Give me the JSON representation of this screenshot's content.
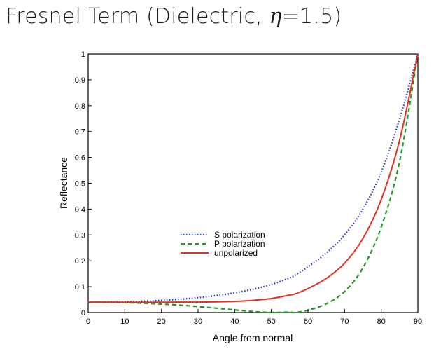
{
  "title": {
    "prefix": "Fresnel Term (Dielectric, ",
    "symbol": "η",
    "suffix": "=1.5)"
  },
  "chart_data": {
    "type": "line",
    "xlabel": "Angle from normal",
    "ylabel": "Reflectance",
    "xlim": [
      0,
      90
    ],
    "ylim": [
      0,
      1
    ],
    "xticks": [
      0,
      10,
      20,
      30,
      40,
      50,
      60,
      70,
      80,
      90
    ],
    "yticks": [
      0,
      0.1,
      0.2,
      0.3,
      0.4,
      0.5,
      0.6,
      0.7,
      0.8,
      0.9,
      1
    ],
    "x": [
      0,
      5,
      10,
      15,
      20,
      25,
      30,
      35,
      40,
      45,
      50,
      55,
      56.3,
      60,
      65,
      70,
      75,
      80,
      85,
      90
    ],
    "series": [
      {
        "name": "S polarization",
        "color": "#2233cc",
        "style": "dotted",
        "values": [
          0.04,
          0.0404,
          0.0417,
          0.0438,
          0.0472,
          0.0518,
          0.0577,
          0.0659,
          0.0762,
          0.0905,
          0.1084,
          0.1338,
          0.1428,
          0.177,
          0.23,
          0.3004,
          0.3997,
          0.5431,
          0.7479,
          1.0
        ]
      },
      {
        "name": "P polarization",
        "color": "#229922",
        "style": "dashed",
        "values": [
          0.04,
          0.0397,
          0.0383,
          0.036,
          0.0328,
          0.0286,
          0.0231,
          0.0167,
          0.0102,
          0.0039,
          0.0003,
          0.0016,
          0.0,
          0.0089,
          0.0339,
          0.0815,
          0.1727,
          0.3307,
          0.5838,
          1.0
        ]
      },
      {
        "name": "unpolarized",
        "color": "#dd3322",
        "style": "solid",
        "values": [
          0.04,
          0.0401,
          0.04,
          0.0399,
          0.04,
          0.0402,
          0.0404,
          0.0413,
          0.0432,
          0.0472,
          0.0543,
          0.0677,
          0.0714,
          0.0929,
          0.132,
          0.191,
          0.2862,
          0.4369,
          0.6659,
          1.0
        ]
      }
    ],
    "legend_position": "center-left",
    "grid": false
  }
}
